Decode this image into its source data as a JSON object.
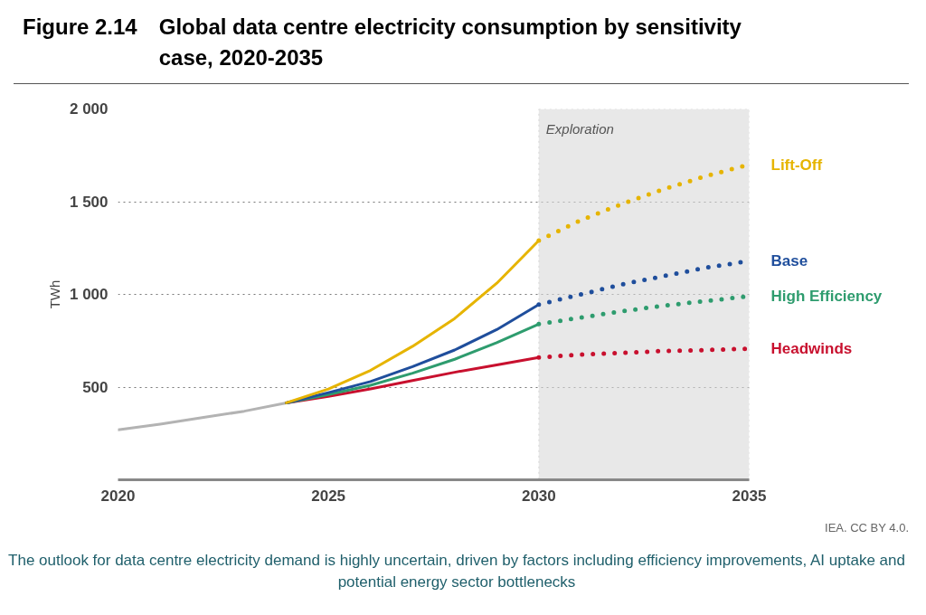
{
  "chart_data": {
    "type": "line",
    "title": "Global data centre electricity consumption by sensitivity case, 2020-2035",
    "ylabel": "TWh",
    "annotations": [
      "Figure 2.14",
      "IEA. CC BY 4.0.",
      "The outlook for data centre electricity demand is highly uncertain, driven by factors including efficiency improvements, AI uptake and potential energy sector bottlenecks"
    ],
    "xlim": [
      2020,
      2035
    ],
    "xticks": [
      2020,
      2025,
      2030,
      2035
    ],
    "ylim": [
      0,
      2000
    ],
    "yticks": [
      {
        "value": 500,
        "label": "500"
      },
      {
        "value": 1000,
        "label": "1 000"
      },
      {
        "value": 1500,
        "label": "1 500"
      },
      {
        "value": 2000,
        "label": "2 000"
      }
    ],
    "grid": "y",
    "legend": false,
    "marker": "none",
    "bands": [
      {
        "axis": "x",
        "from": 2030,
        "to": 2035,
        "label": "Exploration",
        "color": "#d9d9d9"
      }
    ],
    "series": [
      {
        "color": "#b3b3b3",
        "line_style": "solid",
        "x": [
          2020,
          2021,
          2022,
          2023,
          2024
        ],
        "values": [
          270,
          300,
          335,
          370,
          415
        ]
      },
      {
        "color": "#c8102e",
        "line_style": "solid",
        "x": [
          2024,
          2025,
          2026,
          2027,
          2028,
          2029,
          2030
        ],
        "values": [
          415,
          450,
          490,
          535,
          580,
          620,
          660
        ]
      },
      {
        "color": "#2e9c6e",
        "line_style": "solid",
        "x": [
          2024,
          2025,
          2026,
          2027,
          2028,
          2029,
          2030
        ],
        "values": [
          415,
          460,
          510,
          575,
          650,
          740,
          840
        ]
      },
      {
        "color": "#1f4e9c",
        "line_style": "solid",
        "x": [
          2024,
          2025,
          2026,
          2027,
          2028,
          2029,
          2030
        ],
        "values": [
          415,
          470,
          530,
          610,
          700,
          810,
          945
        ]
      },
      {
        "color": "#e6b400",
        "line_style": "solid",
        "x": [
          2024,
          2025,
          2026,
          2027,
          2028,
          2029,
          2030
        ],
        "values": [
          415,
          490,
          590,
          720,
          870,
          1060,
          1290
        ]
      },
      {
        "name": "Lift-Off",
        "color": "#e6b400",
        "line_style": "dotted",
        "x": [
          2030,
          2031,
          2032,
          2033,
          2034,
          2035
        ],
        "values": [
          1290,
          1400,
          1490,
          1570,
          1640,
          1700
        ]
      },
      {
        "name": "Base",
        "color": "#1f4e9c",
        "line_style": "dotted",
        "x": [
          2030,
          2031,
          2032,
          2033,
          2034,
          2035
        ],
        "values": [
          945,
          1000,
          1055,
          1100,
          1145,
          1180
        ]
      },
      {
        "name": "High Efficiency",
        "color": "#2e9c6e",
        "line_style": "dotted",
        "x": [
          2030,
          2031,
          2032,
          2033,
          2034,
          2035
        ],
        "values": [
          840,
          875,
          910,
          940,
          965,
          990
        ]
      },
      {
        "name": "Headwinds",
        "color": "#c8102e",
        "line_style": "dotted",
        "x": [
          2030,
          2031,
          2032,
          2033,
          2034,
          2035
        ],
        "values": [
          660,
          675,
          685,
          695,
          700,
          707
        ]
      }
    ]
  }
}
